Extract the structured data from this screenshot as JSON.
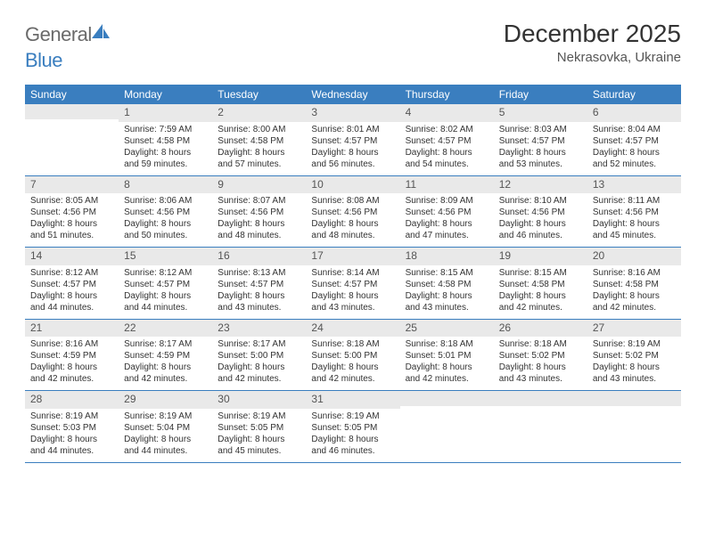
{
  "logo": {
    "text_gray": "General",
    "text_blue": "Blue"
  },
  "title": "December 2025",
  "location": "Nekrasovka, Ukraine",
  "colors": {
    "header_bg": "#3a7ebf",
    "header_fg": "#ffffff",
    "daynum_bg": "#e9e9e9",
    "row_divider": "#3a7ebf",
    "body_text": "#333333",
    "logo_gray": "#6a6a6a",
    "logo_blue": "#3a7ebf"
  },
  "day_headers": [
    "Sunday",
    "Monday",
    "Tuesday",
    "Wednesday",
    "Thursday",
    "Friday",
    "Saturday"
  ],
  "weeks": [
    [
      {
        "n": "",
        "sr": "",
        "ss": "",
        "dl": ""
      },
      {
        "n": "1",
        "sr": "7:59 AM",
        "ss": "4:58 PM",
        "dl": "8 hours and 59 minutes."
      },
      {
        "n": "2",
        "sr": "8:00 AM",
        "ss": "4:58 PM",
        "dl": "8 hours and 57 minutes."
      },
      {
        "n": "3",
        "sr": "8:01 AM",
        "ss": "4:57 PM",
        "dl": "8 hours and 56 minutes."
      },
      {
        "n": "4",
        "sr": "8:02 AM",
        "ss": "4:57 PM",
        "dl": "8 hours and 54 minutes."
      },
      {
        "n": "5",
        "sr": "8:03 AM",
        "ss": "4:57 PM",
        "dl": "8 hours and 53 minutes."
      },
      {
        "n": "6",
        "sr": "8:04 AM",
        "ss": "4:57 PM",
        "dl": "8 hours and 52 minutes."
      }
    ],
    [
      {
        "n": "7",
        "sr": "8:05 AM",
        "ss": "4:56 PM",
        "dl": "8 hours and 51 minutes."
      },
      {
        "n": "8",
        "sr": "8:06 AM",
        "ss": "4:56 PM",
        "dl": "8 hours and 50 minutes."
      },
      {
        "n": "9",
        "sr": "8:07 AM",
        "ss": "4:56 PM",
        "dl": "8 hours and 48 minutes."
      },
      {
        "n": "10",
        "sr": "8:08 AM",
        "ss": "4:56 PM",
        "dl": "8 hours and 48 minutes."
      },
      {
        "n": "11",
        "sr": "8:09 AM",
        "ss": "4:56 PM",
        "dl": "8 hours and 47 minutes."
      },
      {
        "n": "12",
        "sr": "8:10 AM",
        "ss": "4:56 PM",
        "dl": "8 hours and 46 minutes."
      },
      {
        "n": "13",
        "sr": "8:11 AM",
        "ss": "4:56 PM",
        "dl": "8 hours and 45 minutes."
      }
    ],
    [
      {
        "n": "14",
        "sr": "8:12 AM",
        "ss": "4:57 PM",
        "dl": "8 hours and 44 minutes."
      },
      {
        "n": "15",
        "sr": "8:12 AM",
        "ss": "4:57 PM",
        "dl": "8 hours and 44 minutes."
      },
      {
        "n": "16",
        "sr": "8:13 AM",
        "ss": "4:57 PM",
        "dl": "8 hours and 43 minutes."
      },
      {
        "n": "17",
        "sr": "8:14 AM",
        "ss": "4:57 PM",
        "dl": "8 hours and 43 minutes."
      },
      {
        "n": "18",
        "sr": "8:15 AM",
        "ss": "4:58 PM",
        "dl": "8 hours and 43 minutes."
      },
      {
        "n": "19",
        "sr": "8:15 AM",
        "ss": "4:58 PM",
        "dl": "8 hours and 42 minutes."
      },
      {
        "n": "20",
        "sr": "8:16 AM",
        "ss": "4:58 PM",
        "dl": "8 hours and 42 minutes."
      }
    ],
    [
      {
        "n": "21",
        "sr": "8:16 AM",
        "ss": "4:59 PM",
        "dl": "8 hours and 42 minutes."
      },
      {
        "n": "22",
        "sr": "8:17 AM",
        "ss": "4:59 PM",
        "dl": "8 hours and 42 minutes."
      },
      {
        "n": "23",
        "sr": "8:17 AM",
        "ss": "5:00 PM",
        "dl": "8 hours and 42 minutes."
      },
      {
        "n": "24",
        "sr": "8:18 AM",
        "ss": "5:00 PM",
        "dl": "8 hours and 42 minutes."
      },
      {
        "n": "25",
        "sr": "8:18 AM",
        "ss": "5:01 PM",
        "dl": "8 hours and 42 minutes."
      },
      {
        "n": "26",
        "sr": "8:18 AM",
        "ss": "5:02 PM",
        "dl": "8 hours and 43 minutes."
      },
      {
        "n": "27",
        "sr": "8:19 AM",
        "ss": "5:02 PM",
        "dl": "8 hours and 43 minutes."
      }
    ],
    [
      {
        "n": "28",
        "sr": "8:19 AM",
        "ss": "5:03 PM",
        "dl": "8 hours and 44 minutes."
      },
      {
        "n": "29",
        "sr": "8:19 AM",
        "ss": "5:04 PM",
        "dl": "8 hours and 44 minutes."
      },
      {
        "n": "30",
        "sr": "8:19 AM",
        "ss": "5:05 PM",
        "dl": "8 hours and 45 minutes."
      },
      {
        "n": "31",
        "sr": "8:19 AM",
        "ss": "5:05 PM",
        "dl": "8 hours and 46 minutes."
      },
      {
        "n": "",
        "sr": "",
        "ss": "",
        "dl": ""
      },
      {
        "n": "",
        "sr": "",
        "ss": "",
        "dl": ""
      },
      {
        "n": "",
        "sr": "",
        "ss": "",
        "dl": ""
      }
    ]
  ],
  "labels": {
    "sunrise": "Sunrise: ",
    "sunset": "Sunset: ",
    "daylight": "Daylight: "
  }
}
